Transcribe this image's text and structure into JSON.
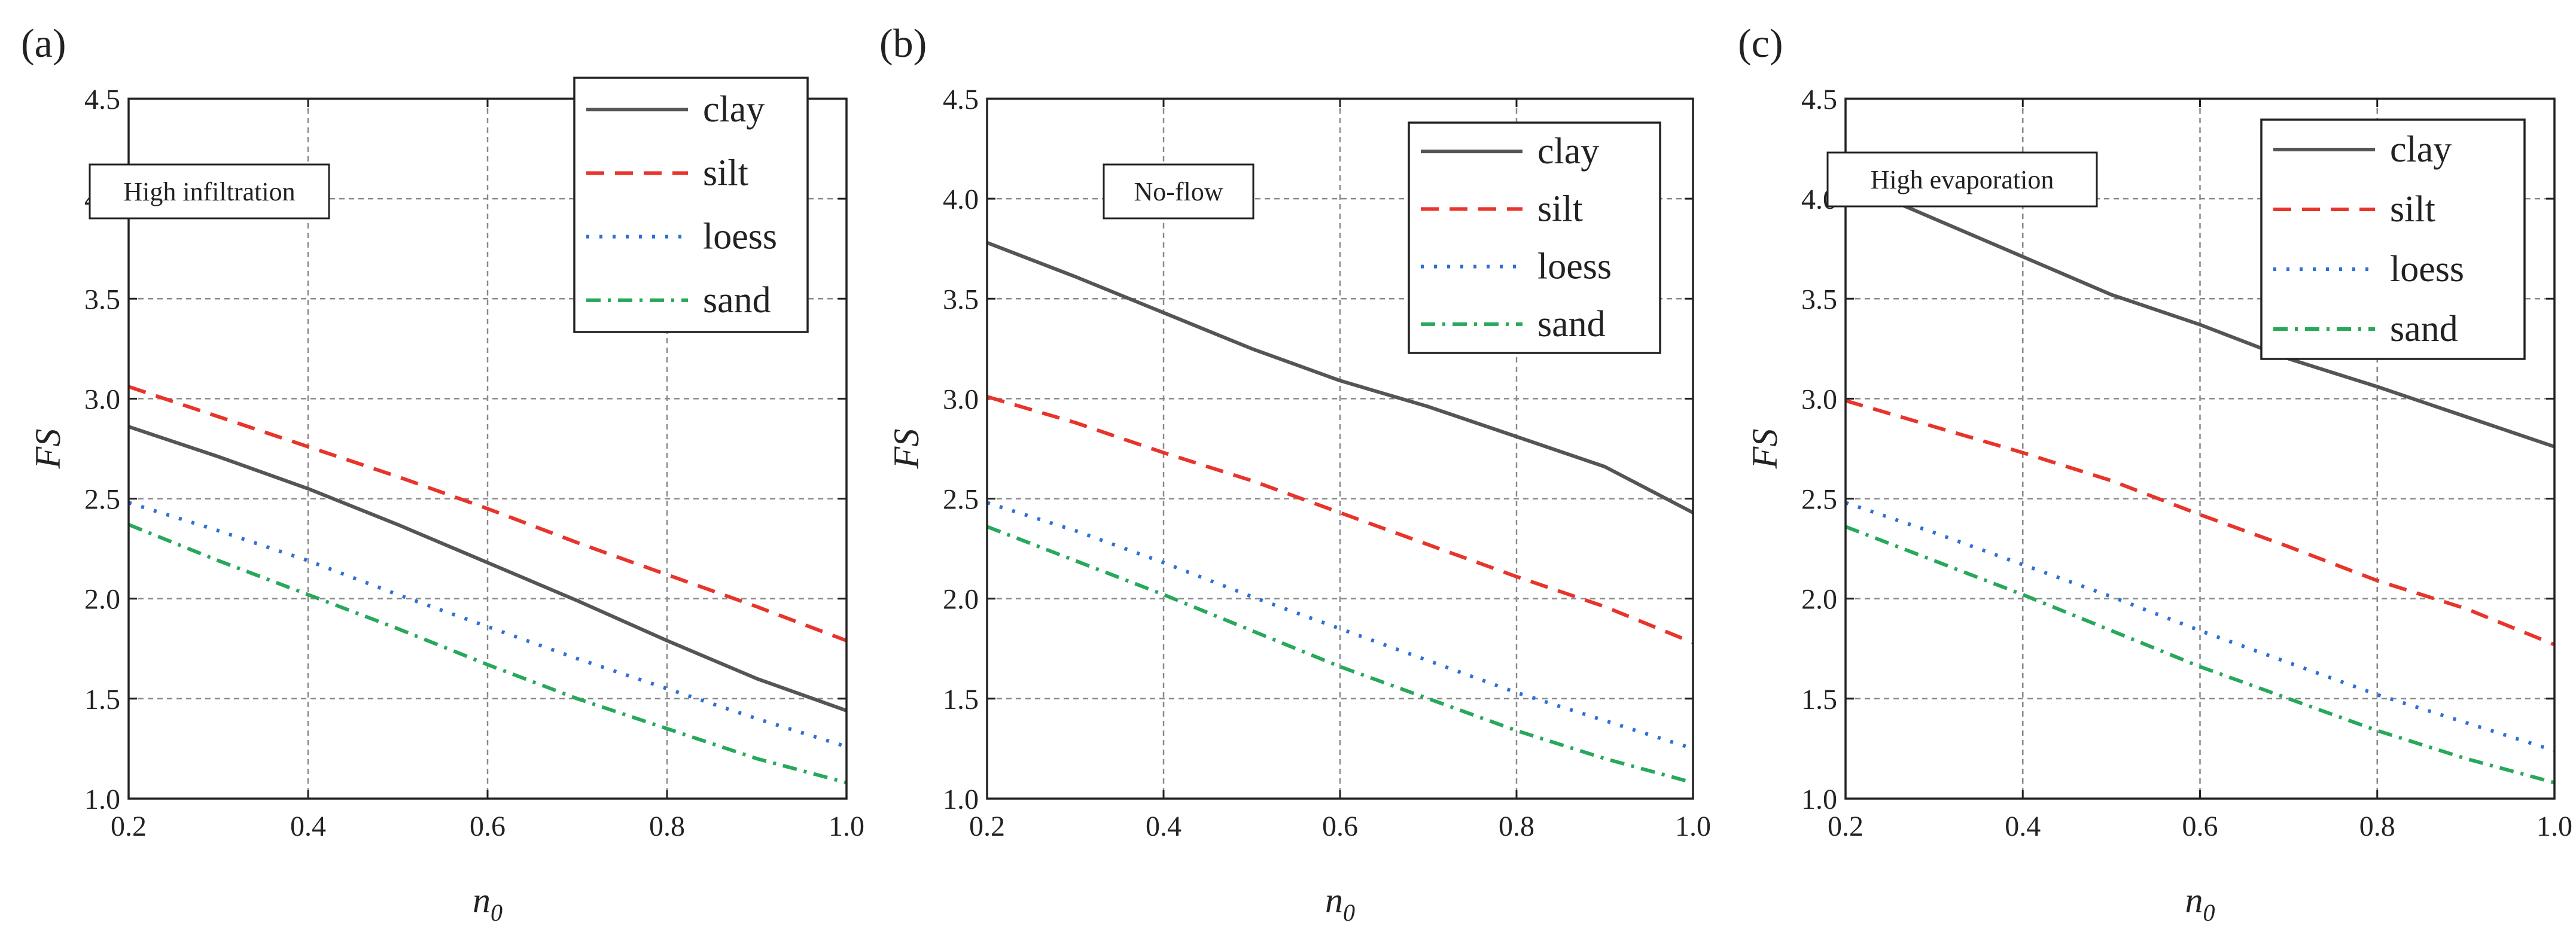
{
  "colors": {
    "clay": "#555555",
    "silt": "#e8342a",
    "loess": "#2f6fd6",
    "sand": "#27a85a",
    "grid": "#8a8a8a",
    "axis": "#222222"
  },
  "chart_data": [
    {
      "type": "line",
      "panel_label": "(a)",
      "annotation": "High infiltration",
      "xlabel": "n",
      "xlabel_sub": "0",
      "ylabel": "FS",
      "xlim": [
        0.2,
        1.0
      ],
      "ylim": [
        1.0,
        4.5
      ],
      "xticks": [
        "0.2",
        "0.4",
        "0.6",
        "0.8",
        "1.0"
      ],
      "yticks": [
        "1.0",
        "1.5",
        "2.0",
        "2.5",
        "3.0",
        "3.5",
        "4.0",
        "4.5"
      ],
      "grid": true,
      "legend_position": "top-right",
      "x": [
        0.2,
        0.3,
        0.4,
        0.5,
        0.6,
        0.7,
        0.8,
        0.9,
        1.0
      ],
      "series": [
        {
          "name": "clay",
          "values": [
            2.86,
            2.71,
            2.55,
            2.37,
            2.18,
            1.99,
            1.79,
            1.6,
            1.44
          ]
        },
        {
          "name": "silt",
          "values": [
            3.06,
            2.91,
            2.76,
            2.61,
            2.45,
            2.28,
            2.12,
            1.96,
            1.79
          ]
        },
        {
          "name": "loess",
          "values": [
            2.48,
            2.34,
            2.19,
            2.02,
            1.86,
            1.7,
            1.55,
            1.4,
            1.26
          ]
        },
        {
          "name": "sand",
          "values": [
            2.37,
            2.19,
            2.02,
            1.85,
            1.67,
            1.5,
            1.35,
            1.2,
            1.08
          ]
        }
      ]
    },
    {
      "type": "line",
      "panel_label": "(b)",
      "annotation": "No-flow",
      "xlabel": "n",
      "xlabel_sub": "0",
      "ylabel": "FS",
      "xlim": [
        0.2,
        1.0
      ],
      "ylim": [
        1.0,
        4.5
      ],
      "xticks": [
        "0.2",
        "0.4",
        "0.6",
        "0.8",
        "1.0"
      ],
      "yticks": [
        "1.0",
        "1.5",
        "2.0",
        "2.5",
        "3.0",
        "3.5",
        "4.0",
        "4.5"
      ],
      "grid": true,
      "legend_position": "top-right",
      "x": [
        0.2,
        0.3,
        0.4,
        0.5,
        0.6,
        0.7,
        0.8,
        0.9,
        1.0
      ],
      "series": [
        {
          "name": "clay",
          "values": [
            3.78,
            3.61,
            3.43,
            3.25,
            3.09,
            2.96,
            2.81,
            2.66,
            2.43
          ]
        },
        {
          "name": "silt",
          "values": [
            3.01,
            2.88,
            2.73,
            2.59,
            2.43,
            2.27,
            2.11,
            1.96,
            1.78
          ]
        },
        {
          "name": "loess",
          "values": [
            2.48,
            2.34,
            2.18,
            2.01,
            1.85,
            1.69,
            1.53,
            1.39,
            1.25
          ]
        },
        {
          "name": "sand",
          "values": [
            2.36,
            2.19,
            2.02,
            1.84,
            1.66,
            1.5,
            1.34,
            1.2,
            1.08
          ]
        }
      ]
    },
    {
      "type": "line",
      "panel_label": "(c)",
      "annotation": "High evaporation",
      "xlabel": "n",
      "xlabel_sub": "0",
      "ylabel": "FS",
      "xlim": [
        0.2,
        1.0
      ],
      "ylim": [
        1.0,
        4.5
      ],
      "xticks": [
        "0.2",
        "0.4",
        "0.6",
        "0.8",
        "1.0"
      ],
      "yticks": [
        "1.0",
        "1.5",
        "2.0",
        "2.5",
        "3.0",
        "3.5",
        "4.0",
        "4.5"
      ],
      "grid": true,
      "legend_position": "top-right",
      "x": [
        0.2,
        0.3,
        0.4,
        0.5,
        0.6,
        0.7,
        0.8,
        0.9,
        1.0
      ],
      "series": [
        {
          "name": "clay",
          "values": [
            4.09,
            3.9,
            3.71,
            3.52,
            3.37,
            3.2,
            3.06,
            2.91,
            2.76
          ]
        },
        {
          "name": "silt",
          "values": [
            2.99,
            2.86,
            2.73,
            2.59,
            2.42,
            2.26,
            2.09,
            1.95,
            1.77
          ]
        },
        {
          "name": "loess",
          "values": [
            2.48,
            2.33,
            2.17,
            2.01,
            1.84,
            1.68,
            1.52,
            1.38,
            1.24
          ]
        },
        {
          "name": "sand",
          "values": [
            2.36,
            2.19,
            2.02,
            1.84,
            1.66,
            1.5,
            1.34,
            1.2,
            1.08
          ]
        }
      ]
    }
  ]
}
